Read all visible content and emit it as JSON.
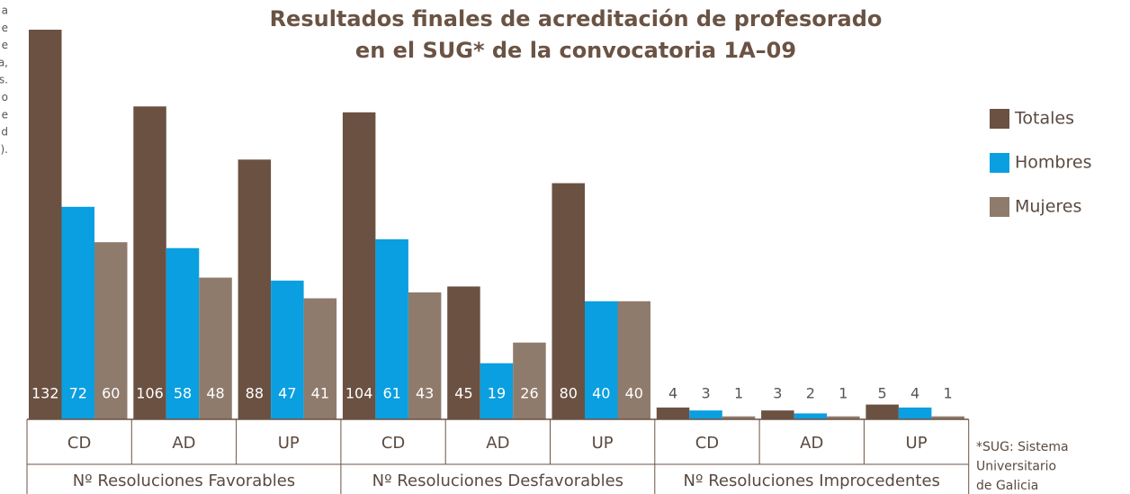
{
  "side_text": [
    "a",
    "e",
    "e",
    "a,",
    "s.",
    "o",
    "e",
    "d",
    ")."
  ],
  "chart_data": {
    "type": "bar",
    "title": [
      "Resultados finales de acreditación de profesorado",
      "en el SUG* de la convocatoria 1A–09"
    ],
    "groups": [
      {
        "name": "Nº Resoluciones Favorables",
        "categories": [
          "CD",
          "AD",
          "UP"
        ]
      },
      {
        "name": "Nº Resoluciones Desfavorables",
        "categories": [
          "CD",
          "AD",
          "UP"
        ]
      },
      {
        "name": "Nº Resoluciones Improcedentes",
        "categories": [
          "CD",
          "AD",
          "UP"
        ]
      }
    ],
    "series": [
      {
        "name": "Totales",
        "color": "#6b5142",
        "values": [
          132,
          106,
          88,
          104,
          45,
          80,
          4,
          3,
          5
        ]
      },
      {
        "name": "Hombres",
        "color": "#0a9fe0",
        "values": [
          72,
          58,
          47,
          61,
          19,
          40,
          3,
          2,
          4
        ]
      },
      {
        "name": "Mujeres",
        "color": "#8f7b6c",
        "values": [
          60,
          48,
          41,
          43,
          26,
          40,
          1,
          1,
          1
        ]
      }
    ],
    "footnote": [
      "*SUG: Sistema",
      "Universitario",
      "de Galicia"
    ]
  }
}
